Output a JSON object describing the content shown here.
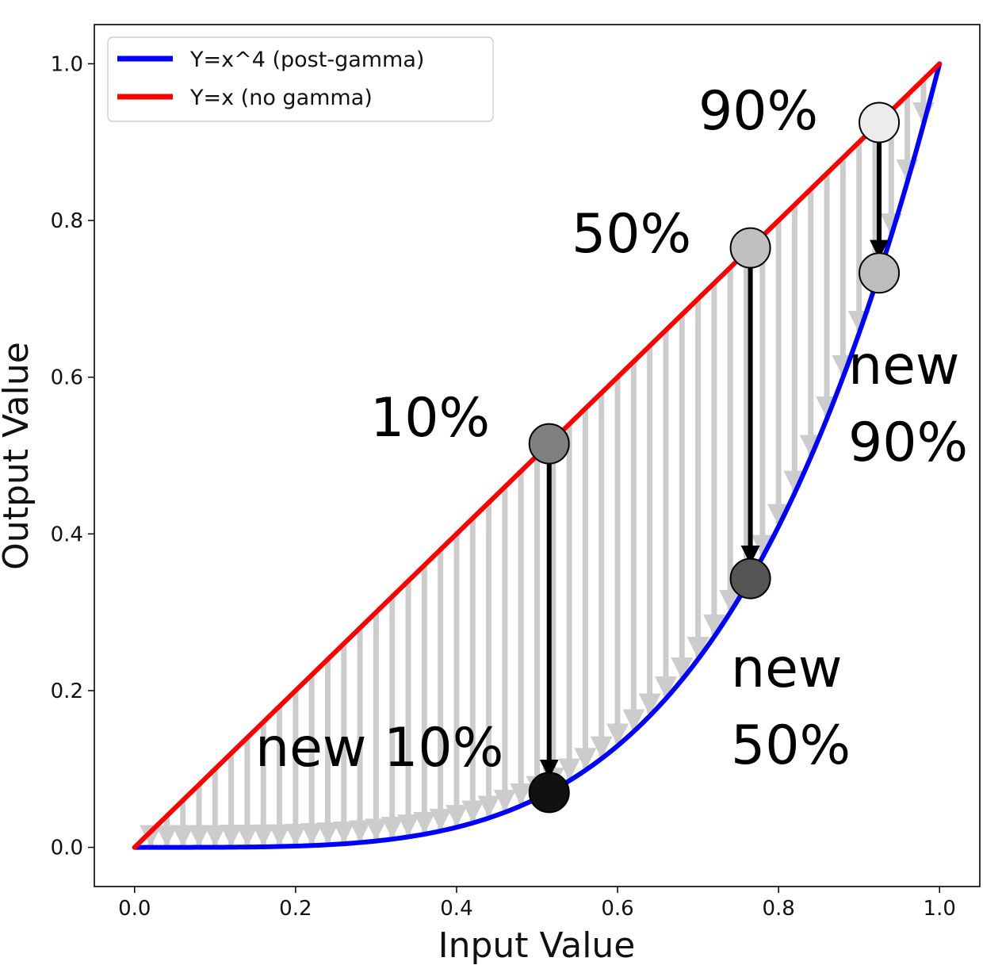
{
  "chart_data": {
    "type": "line",
    "xlabel": "Input Value",
    "ylabel": "Output Value",
    "xlim": [
      -0.05,
      1.05
    ],
    "ylim": [
      -0.05,
      1.05
    ],
    "xticks": [
      "0.0",
      "0.2",
      "0.4",
      "0.6",
      "0.8",
      "1.0"
    ],
    "yticks": [
      "0.0",
      "0.2",
      "0.4",
      "0.6",
      "0.8",
      "1.0"
    ],
    "grid": false,
    "legend_position": "upper-left",
    "series": [
      {
        "name": "Y=x^4 (post-gamma)",
        "color": "#0000ff",
        "function": "x^4"
      },
      {
        "name": "Y=x (no gamma)",
        "color": "#ff0000",
        "function": "x"
      }
    ],
    "mapping_arrows": {
      "color": "#cccccc",
      "count": 51
    },
    "markers": [
      {
        "x": 0.515,
        "y": 0.515,
        "target_y": 0.07,
        "color": "#808080",
        "target_color": "#111111",
        "label": "10%",
        "target_label": "new 10%"
      },
      {
        "x": 0.765,
        "y": 0.765,
        "target_y": 0.343,
        "color": "#c0c0c0",
        "target_color": "#555555",
        "label": "50%",
        "target_label": "new 50%"
      },
      {
        "x": 0.925,
        "y": 0.925,
        "target_y": 0.733,
        "color": "#ececec",
        "target_color": "#bdbdbd",
        "label": "90%",
        "target_label": "new 90%"
      }
    ]
  }
}
